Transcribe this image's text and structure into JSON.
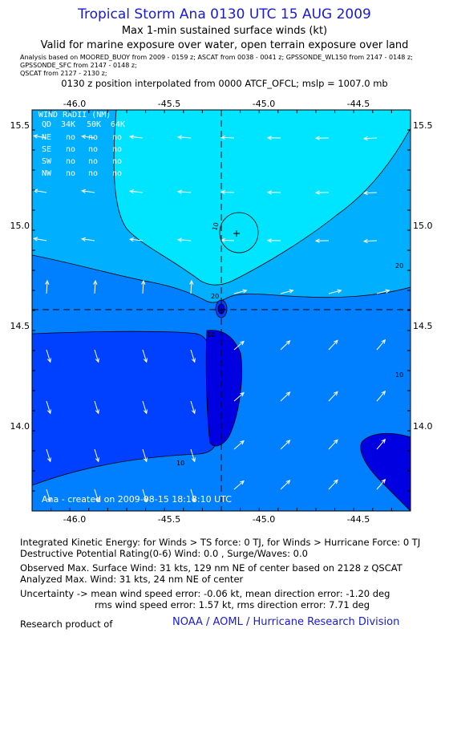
{
  "header": {
    "title": "Tropical Storm Ana 0130 UTC 15 AUG 2009",
    "subtitle": "Max 1-min sustained surface winds (kt)",
    "valid": "Valid for marine exposure over water, open terrain exposure over land",
    "analysis_line1": "Analysis based on  MOORED_BUOY from  2009 - 0159 z;  ASCAT from 0038 - 0041 z;  GPSSONDE_WL150 from  2147 - 0148 z;",
    "analysis_line2": "GPSSONDE_SFC from  2147 - 0148 z;",
    "analysis_line3": "QSCAT from  2127 - 2130 z;",
    "position_note": "0130 z position interpolated from 0000 ATCF_OFCL; mslp = 1007.0 mb"
  },
  "map": {
    "lon_range": [
      -46.2,
      -44.2
    ],
    "lat_range": [
      13.6,
      15.6
    ],
    "lon_ticks": [
      "-46.0",
      "-45.5",
      "-45.0",
      "-44.5"
    ],
    "lat_ticks": [
      "15.5",
      "15.0",
      "14.5",
      "14.0"
    ],
    "center": {
      "lon": -45.2,
      "lat": 14.57
    },
    "wind_max_marker": {
      "lon": -45.07,
      "lat": 14.95
    },
    "colors": {
      "lightest": "#00e5ff",
      "light": "#00b0ff",
      "medium": "#0080ff",
      "dark": "#0040ff",
      "darkest": "#0000e0",
      "contour": "#000000",
      "title": "#1a1ad6"
    },
    "contour_labels": [
      "10",
      "20",
      "20",
      "10",
      "10",
      "10",
      "20"
    ],
    "wind_radii": {
      "title": "WIND RADII (NM)",
      "header": [
        "QD",
        "34K",
        "50K",
        "64K"
      ],
      "rows": [
        [
          "NE",
          "no",
          "no",
          "no"
        ],
        [
          "SE",
          "no",
          "no",
          "no"
        ],
        [
          "SW",
          "no",
          "no",
          "no"
        ],
        [
          "NW",
          "no",
          "no",
          "no"
        ]
      ]
    },
    "created": "Ana - created on 2009-08-15 18:18:10 UTC"
  },
  "footer": {
    "ike": "Integrated Kinetic Energy:  for Winds > TS force: 0 TJ,  for Winds > Hurricane Force: 0 TJ",
    "dpr": "Destructive Potential Rating(0-6)   Wind: 0.0 , Surge/Waves: 0.0",
    "observed": "Observed Max. Surface Wind: 31 kts, 129 nm NE of center based on 2128 z QSCAT",
    "analyzed": "Analyzed Max. Wind: 31 kts, 24 nm NE of center",
    "uncert1": "Uncertainty -> mean wind speed error:  -0.06 kt,   mean direction error:  -1.20 deg",
    "uncert2": "rms wind speed error: 1.57 kt,   rms direction error: 7.71 deg",
    "research": "Research product of",
    "credit": "NOAA / AOML / Hurricane Research Division"
  }
}
